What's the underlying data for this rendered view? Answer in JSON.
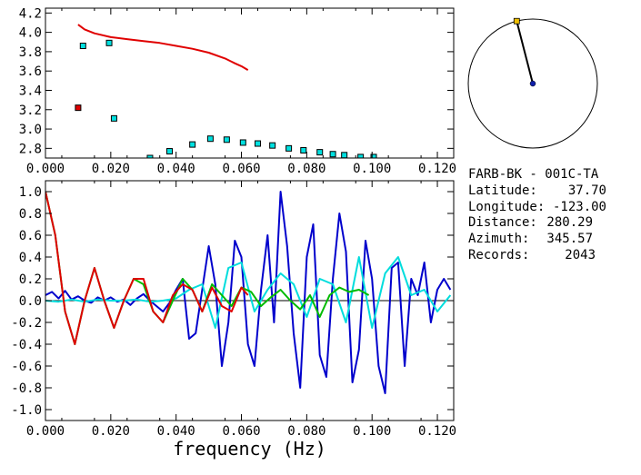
{
  "chart_data": [
    {
      "type": "scatter",
      "xlim": [
        0.0,
        0.125
      ],
      "ylim": [
        2.7,
        4.25
      ],
      "x_ticks": [
        "0.000",
        "0.020",
        "0.040",
        "0.060",
        "0.080",
        "0.100",
        "0.120"
      ],
      "y_ticks": [
        "2.8",
        "3.0",
        "3.2",
        "3.4",
        "3.6",
        "3.8",
        "4.0",
        "4.2"
      ],
      "series": [
        {
          "style": "line",
          "color": "#e00000",
          "x": [
            0.01,
            0.012,
            0.015,
            0.02,
            0.025,
            0.03,
            0.035,
            0.04,
            0.045,
            0.05,
            0.055,
            0.058,
            0.06,
            0.062
          ],
          "values": [
            4.08,
            4.03,
            3.99,
            3.95,
            3.93,
            3.91,
            3.89,
            3.86,
            3.83,
            3.79,
            3.73,
            3.68,
            3.65,
            3.61
          ]
        },
        {
          "style": "square",
          "color": "#00e0e0",
          "x": [
            0.0115,
            0.0195,
            0.021,
            0.032,
            0.038,
            0.045,
            0.0505,
            0.0555,
            0.0605,
            0.065,
            0.0695,
            0.0745,
            0.079,
            0.084,
            0.088,
            0.0915,
            0.0965,
            0.1005
          ],
          "values": [
            3.86,
            3.89,
            3.11,
            2.7,
            2.77,
            2.84,
            2.9,
            2.89,
            2.86,
            2.85,
            2.83,
            2.8,
            2.78,
            2.76,
            2.74,
            2.73,
            2.71,
            2.71
          ]
        },
        {
          "style": "square",
          "color": "#e00000",
          "x": [
            0.01
          ],
          "values": [
            3.22
          ]
        }
      ]
    },
    {
      "type": "line",
      "xlim": [
        0.0,
        0.125
      ],
      "ylim": [
        -1.1,
        1.1
      ],
      "xlabel": "frequency (Hz)",
      "x_ticks": [
        "0.000",
        "0.020",
        "0.040",
        "0.060",
        "0.080",
        "0.100",
        "0.120"
      ],
      "y_ticks": [
        "1.0",
        "0.8",
        "0.6",
        "0.4",
        "0.2",
        "0.0",
        "-0.2",
        "-0.4",
        "-0.6",
        "-0.8",
        "-1.0"
      ],
      "series": [
        {
          "color": "#0000cc",
          "x": [
            0,
            0.002,
            0.004,
            0.006,
            0.008,
            0.01,
            0.012,
            0.014,
            0.016,
            0.018,
            0.02,
            0.022,
            0.024,
            0.026,
            0.028,
            0.03,
            0.032,
            0.034,
            0.036,
            0.038,
            0.04,
            0.042,
            0.044,
            0.046,
            0.048,
            0.05,
            0.052,
            0.054,
            0.056,
            0.058,
            0.06,
            0.062,
            0.064,
            0.066,
            0.068,
            0.07,
            0.072,
            0.074,
            0.076,
            0.078,
            0.08,
            0.082,
            0.084,
            0.086,
            0.088,
            0.09,
            0.092,
            0.094,
            0.096,
            0.098,
            0.1,
            0.102,
            0.104,
            0.106,
            0.108,
            0.11,
            0.112,
            0.114,
            0.116,
            0.118,
            0.12,
            0.122,
            0.124
          ],
          "values": [
            0.05,
            0.08,
            0.02,
            0.09,
            0.01,
            0.04,
            0.0,
            -0.02,
            0.03,
            0.0,
            0.03,
            -0.01,
            0.01,
            -0.04,
            0.02,
            0.06,
            0.0,
            -0.05,
            -0.1,
            -0.02,
            0.1,
            0.2,
            -0.35,
            -0.3,
            0.1,
            0.5,
            0.15,
            -0.6,
            -0.2,
            0.55,
            0.4,
            -0.4,
            -0.6,
            0.1,
            0.6,
            -0.2,
            1.0,
            0.5,
            -0.3,
            -0.8,
            0.4,
            0.7,
            -0.5,
            -0.7,
            0.2,
            0.8,
            0.45,
            -0.75,
            -0.45,
            0.55,
            0.2,
            -0.6,
            -0.85,
            0.3,
            0.35,
            -0.6,
            0.2,
            0.05,
            0.35,
            -0.2,
            0.1,
            0.2,
            0.1
          ]
        },
        {
          "color": "#00dddd",
          "x": [
            0,
            0.004,
            0.008,
            0.012,
            0.016,
            0.02,
            0.024,
            0.028,
            0.032,
            0.036,
            0.04,
            0.044,
            0.048,
            0.052,
            0.056,
            0.06,
            0.064,
            0.068,
            0.072,
            0.076,
            0.08,
            0.084,
            0.088,
            0.092,
            0.096,
            0.1,
            0.104,
            0.108,
            0.112,
            0.116,
            0.12,
            0.124
          ],
          "values": [
            0.0,
            -0.01,
            0.01,
            -0.01,
            0.01,
            0.0,
            0.0,
            0.01,
            -0.01,
            0.0,
            0.02,
            0.1,
            0.15,
            -0.25,
            0.3,
            0.35,
            -0.1,
            0.1,
            0.25,
            0.15,
            -0.15,
            0.2,
            0.15,
            -0.2,
            0.4,
            -0.25,
            0.25,
            0.4,
            0.05,
            0.1,
            -0.1,
            0.05
          ]
        },
        {
          "color": "#00bb00",
          "x": [
            0,
            0.003,
            0.006,
            0.009,
            0.012,
            0.015,
            0.018,
            0.021,
            0.024,
            0.027,
            0.03,
            0.033,
            0.036,
            0.039,
            0.042,
            0.045,
            0.048,
            0.051,
            0.054,
            0.057,
            0.06,
            0.063,
            0.066,
            0.069,
            0.072,
            0.075,
            0.078,
            0.081,
            0.084,
            0.087,
            0.09,
            0.093,
            0.096,
            0.099
          ],
          "values": [
            1.0,
            0.6,
            -0.1,
            -0.4,
            0.0,
            0.3,
            0.0,
            -0.25,
            0.0,
            0.2,
            0.15,
            -0.1,
            -0.2,
            0.0,
            0.2,
            0.1,
            -0.1,
            0.15,
            0.05,
            -0.05,
            0.12,
            0.08,
            -0.05,
            0.03,
            0.1,
            0.0,
            -0.08,
            0.05,
            -0.15,
            0.05,
            0.12,
            0.08,
            0.1,
            0.05
          ]
        },
        {
          "color": "#e00000",
          "x": [
            0,
            0.003,
            0.006,
            0.009,
            0.012,
            0.015,
            0.018,
            0.021,
            0.024,
            0.027,
            0.03,
            0.033,
            0.036,
            0.039,
            0.042,
            0.045,
            0.048,
            0.051,
            0.054,
            0.057,
            0.06,
            0.062
          ],
          "values": [
            1.0,
            0.6,
            -0.1,
            -0.4,
            0.0,
            0.3,
            0.0,
            -0.25,
            0.0,
            0.2,
            0.2,
            -0.1,
            -0.2,
            0.05,
            0.15,
            0.1,
            -0.1,
            0.12,
            -0.05,
            -0.1,
            0.12,
            0.05
          ]
        }
      ]
    }
  ],
  "polar": {
    "marker_azimuth_deg": 345.57,
    "colors": {
      "outline": "#000000",
      "needle": "#000000",
      "tip": "#f0c000",
      "center": "#1020aa"
    }
  },
  "info": {
    "station": "FARB-BK - 001C-TA",
    "rows": [
      {
        "label": "Latitude:",
        "value": "37.70"
      },
      {
        "label": "Longitude:",
        "value": "-123.00"
      },
      {
        "label": "Distance:",
        "value": "280.29"
      },
      {
        "label": "Azimuth:",
        "value": "345.57"
      },
      {
        "label": "Records:",
        "value": "2043"
      }
    ]
  }
}
